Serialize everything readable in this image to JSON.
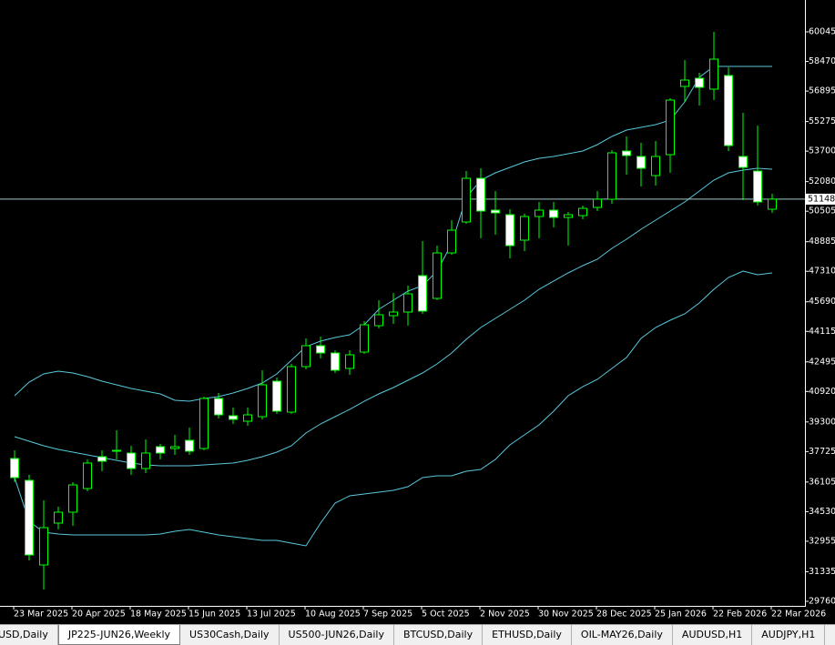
{
  "chart_data": {
    "type": "candlestick",
    "categories": [
      "23 Mar 2025",
      null,
      null,
      null,
      "20 Apr 2025",
      null,
      null,
      null,
      "18 May 2025",
      null,
      null,
      null,
      "15 Jun 2025",
      null,
      null,
      null,
      "13 Jul 2025",
      null,
      null,
      null,
      "10 Aug 2025",
      null,
      null,
      null,
      "7 Sep 2025",
      null,
      null,
      null,
      "5 Oct 2025",
      null,
      null,
      null,
      "2 Nov 2025",
      null,
      null,
      null,
      "30 Nov 2025",
      null,
      null,
      null,
      "28 Dec 2025",
      null,
      null,
      null,
      "25 Jan 2026",
      null,
      null,
      null,
      "22 Feb 2026",
      null,
      null,
      null,
      "22 Mar 2026"
    ],
    "open": [
      37355,
      36194,
      31695,
      33920,
      34501,
      35759,
      37452,
      37743,
      37646,
      36823,
      37984,
      37888,
      38323,
      37888,
      40549,
      39629,
      39339,
      39581,
      41468,
      39823,
      42242,
      43355,
      42968,
      42145,
      43016,
      44419,
      44951,
      45145,
      47080,
      45870,
      48289,
      49934,
      52257,
      50563,
      50321,
      48967,
      50225,
      50563,
      50176,
      50273,
      50708,
      51144,
      53708,
      53418,
      52402,
      53514,
      57143,
      57578,
      56998,
      57723,
      53418,
      52644,
      50612
    ],
    "high": [
      37791,
      36485,
      35130,
      34791,
      36098,
      37307,
      37791,
      38855,
      38033,
      38371,
      38130,
      38613,
      39000,
      40645,
      40839,
      40065,
      40065,
      42048,
      41661,
      42387,
      43742,
      43838,
      43113,
      43113,
      44661,
      45774,
      46161,
      46548,
      48918,
      48676,
      50031,
      52644,
      52789,
      51579,
      50612,
      50370,
      50999,
      50999,
      50466,
      50805,
      51579,
      53756,
      54482,
      54143,
      54240,
      56514,
      58546,
      57869,
      60045,
      58159,
      55740,
      55063,
      51434
    ],
    "low": [
      36098,
      31937,
      30389,
      33582,
      33775,
      35614,
      36678,
      37307,
      36485,
      36581,
      37307,
      37549,
      37549,
      37791,
      39484,
      39194,
      39097,
      39436,
      39726,
      39726,
      42097,
      42677,
      41903,
      41806,
      42919,
      44274,
      44516,
      44419,
      45048,
      45774,
      48193,
      49838,
      49063,
      49257,
      47999,
      48386,
      49063,
      49644,
      48676,
      50079,
      50515,
      50902,
      52450,
      51821,
      51869,
      52547,
      56320,
      56127,
      56417,
      53708,
      51095,
      50805,
      50418
    ],
    "close": [
      36339,
      32227,
      33679,
      34501,
      35952,
      37114,
      37210,
      37791,
      36823,
      37646,
      37646,
      37984,
      37743,
      40549,
      39678,
      39436,
      39678,
      41274,
      39871,
      42242,
      43355,
      42968,
      42048,
      42871,
      44467,
      45000,
      45145,
      46112,
      45193,
      48289,
      49499,
      52257,
      50515,
      50418,
      48676,
      50225,
      50563,
      50176,
      50321,
      50660,
      51144,
      53611,
      53466,
      52789,
      53418,
      56417,
      57482,
      57095,
      58594,
      53998,
      52837,
      50999,
      51148
    ],
    "color": "#00ff00",
    "up_fill": "#000000",
    "down_fill": "#ffffff",
    "overlays": [
      {
        "color": "#5ac8dc",
        "values": [
          40694,
          41419,
          41855,
          42000,
          41903,
          41710,
          41468,
          41274,
          41081,
          40936,
          40790,
          40452,
          40403,
          40549,
          40645,
          40839,
          41081,
          41371,
          41855,
          42581,
          43306,
          43596,
          43790,
          43935,
          44467,
          45290,
          45774,
          46257,
          46548,
          47322,
          48773,
          51241,
          52160,
          52547,
          52837,
          53127,
          53321,
          53418,
          53563,
          53708,
          54047,
          54482,
          54821,
          54966,
          55111,
          55353,
          56320,
          57627,
          58207,
          58207,
          58207,
          58207,
          58207
        ]
      },
      {
        "color": "#5ac8dc",
        "values": [
          38517,
          38275,
          38033,
          37839,
          37694,
          37549,
          37404,
          37259,
          37114,
          37017,
          36968,
          36968,
          36968,
          37017,
          37065,
          37114,
          37259,
          37452,
          37694,
          38033,
          38710,
          39194,
          39581,
          39968,
          40403,
          40790,
          41129,
          41516,
          41903,
          42387,
          42968,
          43693,
          44322,
          44806,
          45290,
          45774,
          46354,
          46790,
          47225,
          47612,
          47951,
          48531,
          49015,
          49547,
          50031,
          50515,
          50999,
          51579,
          52160,
          52547,
          52692,
          52789,
          52740
        ]
      },
      {
        "color": "#5ac8dc",
        "values": [
          36339,
          34017,
          33437,
          33340,
          33292,
          33292,
          33292,
          33292,
          33292,
          33292,
          33340,
          33485,
          33582,
          33437,
          33292,
          33195,
          33098,
          33001,
          33001,
          32856,
          32711,
          33920,
          34985,
          35372,
          35469,
          35565,
          35662,
          35856,
          36339,
          36436,
          36436,
          36678,
          36775,
          37307,
          38081,
          38613,
          39146,
          39871,
          40694,
          41177,
          41565,
          42145,
          42726,
          43742,
          44322,
          44709,
          45048,
          45628,
          46354,
          46983,
          47322,
          47128,
          47225
        ]
      }
    ],
    "last_price": 51148,
    "last_price_color": "#a0c8c8",
    "ylim": [
      29518,
      61739
    ],
    "yticks": [
      29760,
      31335,
      32955,
      34530,
      36105,
      37725,
      39300,
      40920,
      42495,
      44115,
      45690,
      47310,
      48885,
      50505,
      52080,
      53700,
      55275,
      56895,
      58470,
      60045
    ]
  },
  "tabs": [
    "USD,Daily",
    "JP225-JUN26,Weekly",
    "US30Cash,Daily",
    "US500-JUN26,Daily",
    "BTCUSD,Daily",
    "ETHUSD,Daily",
    "OIL-MAY26,Daily",
    "AUDUSD,H1",
    "AUDJPY,H1"
  ]
}
